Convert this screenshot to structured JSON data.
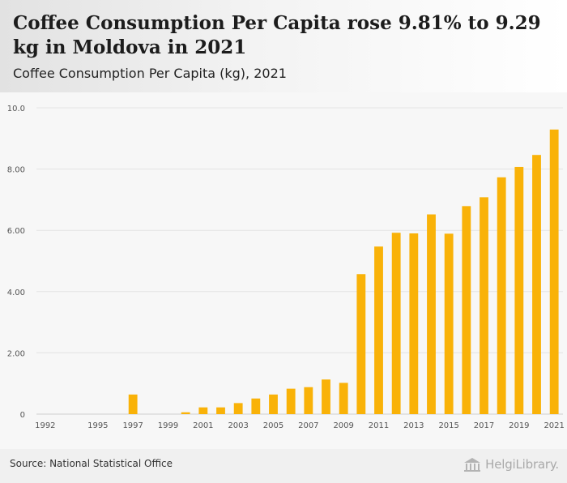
{
  "header": {
    "title": "Coffee Consumption Per Capita rose 9.81% to 9.29 kg in Moldova in 2021",
    "subtitle": "Coffee Consumption Per Capita (kg), 2021"
  },
  "footer": {
    "source": "Source: National Statistical Office",
    "brand": "HelgiLibrary."
  },
  "colors": {
    "bar": "#f9b208",
    "axis_text": "#555555",
    "grid": "#e4e4e4",
    "plot_background": "#f7f7f7"
  },
  "chart_data": {
    "type": "bar",
    "title": "Coffee Consumption Per Capita rose 9.81% to 9.29 kg in Moldova in 2021",
    "subtitle": "Coffee Consumption Per Capita (kg), 2021",
    "xlabel": "",
    "ylabel": "",
    "ylim": [
      0,
      10
    ],
    "yticks": [
      0,
      2,
      4,
      6,
      8,
      10
    ],
    "ytick_labels": [
      "0",
      "2.00",
      "4.00",
      "6.00",
      "8.00",
      "10.0"
    ],
    "grid": true,
    "categories": [
      "1992",
      "1993",
      "1994",
      "1995",
      "1996",
      "1997",
      "1998",
      "1999",
      "2000",
      "2001",
      "2002",
      "2003",
      "2004",
      "2005",
      "2006",
      "2007",
      "2008",
      "2009",
      "2010",
      "2011",
      "2012",
      "2013",
      "2014",
      "2015",
      "2016",
      "2017",
      "2018",
      "2019",
      "2020",
      "2021"
    ],
    "xtick_labels": [
      "1992",
      "1995",
      "1997",
      "1999",
      "2001",
      "2003",
      "2005",
      "2007",
      "2009",
      "2011",
      "2013",
      "2015",
      "2017",
      "2019",
      "2021"
    ],
    "values": [
      0,
      0,
      0,
      0,
      0,
      0.64,
      0,
      0,
      0.06,
      0.22,
      0.22,
      0.36,
      0.51,
      0.64,
      0.83,
      0.88,
      1.13,
      1.02,
      4.57,
      5.47,
      5.92,
      5.9,
      6.52,
      5.89,
      6.79,
      7.08,
      7.73,
      8.07,
      8.46,
      9.29
    ]
  }
}
